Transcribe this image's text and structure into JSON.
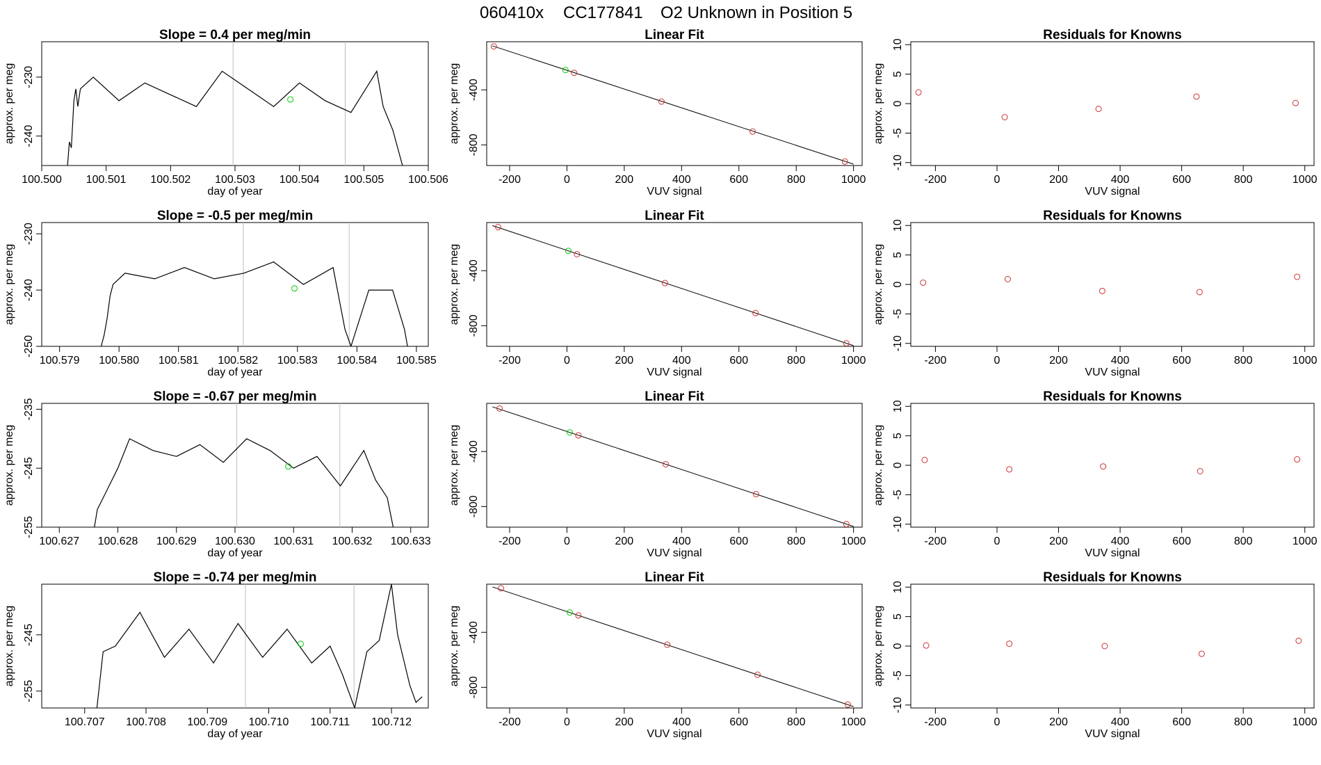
{
  "figure": {
    "title_parts": [
      "060410x",
      "CC177841",
      "O2 Unknown in Position  5"
    ]
  },
  "colors": {
    "line": "#000000",
    "known": "#cd3333",
    "unknown": "#00cd00",
    "vline": "#bebebe",
    "axis": "#000000"
  },
  "chart_data": [
    {
      "type": "line",
      "title": "Slope =  0.4  per meg/min",
      "xlabel": "day of year",
      "ylabel": "approx. per meg",
      "xlim": [
        100.5,
        100.506
      ],
      "ylim": [
        -245,
        -224
      ],
      "xticks": [
        100.5,
        100.501,
        100.502,
        100.503,
        100.504,
        100.505,
        100.506
      ],
      "xtick_labels": [
        "100.500",
        "100.501",
        "100.502",
        "100.503",
        "100.504",
        "100.505",
        "100.506"
      ],
      "yticks": [
        -230,
        -240
      ],
      "ytick_labels": [
        "-230",
        "-240"
      ],
      "vlines": [
        100.50297,
        100.50471
      ],
      "x": [
        100.5004,
        100.50043,
        100.50046,
        100.5005,
        100.50053,
        100.50056,
        100.5006,
        100.5008,
        100.5012,
        100.5016,
        100.502,
        100.5024,
        100.5028,
        100.5032,
        100.5036,
        100.504,
        100.5044,
        100.5048,
        100.5052,
        100.5053,
        100.50545,
        100.5056
      ],
      "y": [
        -245,
        -241,
        -242,
        -234,
        -232,
        -235,
        -232,
        -230,
        -234,
        -231,
        -233,
        -235,
        -229,
        -232,
        -235,
        -231,
        -234,
        -236,
        -229,
        -235,
        -239,
        -245
      ],
      "unknown_point": [
        100.50386,
        -233.8
      ]
    },
    {
      "type": "scatter",
      "title": "Linear Fit",
      "xlabel": "VUV signal",
      "ylabel": "approx. per meg",
      "xlim": [
        -280,
        1030
      ],
      "ylim": [
        -950,
        -50
      ],
      "xticks": [
        -200,
        0,
        200,
        400,
        600,
        800,
        1000
      ],
      "xtick_labels": [
        "-200",
        "0",
        "200",
        "400",
        "600",
        "800",
        "1000"
      ],
      "yticks": [
        -400,
        -800
      ],
      "ytick_labels": [
        "-400",
        "-800"
      ],
      "fit_line": [
        [
          -260,
          -80
        ],
        [
          1000,
          -940
        ]
      ],
      "x": [
        -255,
        25,
        330,
        648,
        970
      ],
      "y": [
        -84,
        -276,
        -485,
        -703,
        -921
      ],
      "unknown_point": [
        -5,
        -256
      ]
    },
    {
      "type": "scatter",
      "title": "Residuals for Knowns",
      "xlabel": "VUV signal",
      "ylabel": "approx. per meg",
      "xlim": [
        -280,
        1030
      ],
      "ylim": [
        -10.5,
        10.5
      ],
      "xticks": [
        -200,
        0,
        200,
        400,
        600,
        800,
        1000
      ],
      "xtick_labels": [
        "-200",
        "0",
        "200",
        "400",
        "600",
        "800",
        "1000"
      ],
      "yticks": [
        10,
        5,
        0,
        -5,
        -10
      ],
      "ytick_labels": [
        "10",
        "5",
        "0",
        "-5",
        "-10"
      ],
      "x": [
        -255,
        25,
        330,
        648,
        970
      ],
      "y": [
        1.9,
        -2.3,
        -0.9,
        1.2,
        0.1
      ]
    },
    {
      "type": "line",
      "title": "Slope =  -0.5  per meg/min",
      "xlabel": "day of year",
      "ylabel": "approx. per meg",
      "xlim": [
        100.5787,
        100.5852
      ],
      "ylim": [
        -250,
        -228
      ],
      "xticks": [
        100.579,
        100.58,
        100.581,
        100.582,
        100.583,
        100.584,
        100.585
      ],
      "xtick_labels": [
        "100.579",
        "100.580",
        "100.581",
        "100.582",
        "100.583",
        "100.584",
        "100.585"
      ],
      "yticks": [
        -230,
        -240,
        -250
      ],
      "ytick_labels": [
        "-230",
        "-240",
        "-250"
      ],
      "vlines": [
        100.58209,
        100.58387
      ],
      "x": [
        100.5797,
        100.57975,
        100.5798,
        100.57985,
        100.5799,
        100.5801,
        100.5806,
        100.5811,
        100.5816,
        100.5821,
        100.5826,
        100.5831,
        100.5836,
        100.5838,
        100.5839,
        100.5842,
        100.5846,
        100.5848,
        100.58485
      ],
      "y": [
        -250,
        -248,
        -245,
        -241,
        -239,
        -237,
        -238,
        -236,
        -238,
        -237,
        -235,
        -239,
        -236,
        -247,
        -250,
        -240,
        -240,
        -247,
        -250
      ],
      "unknown_point": [
        100.58295,
        -239.7
      ]
    },
    {
      "type": "scatter",
      "title": "Linear Fit",
      "xlabel": "VUV signal",
      "ylabel": "approx. per meg",
      "xlim": [
        -280,
        1030
      ],
      "ylim": [
        -950,
        -50
      ],
      "xticks": [
        -200,
        0,
        200,
        400,
        600,
        800,
        1000
      ],
      "xtick_labels": [
        "-200",
        "0",
        "200",
        "400",
        "600",
        "800",
        "1000"
      ],
      "yticks": [
        -400,
        -800
      ],
      "ytick_labels": [
        "-400",
        "-800"
      ],
      "fit_line": [
        [
          -260,
          -72
        ],
        [
          1000,
          -945
        ]
      ],
      "x": [
        -240,
        35,
        342,
        658,
        975
      ],
      "y": [
        -83,
        -280,
        -490,
        -708,
        -928
      ],
      "unknown_point": [
        5,
        -256
      ]
    },
    {
      "type": "scatter",
      "title": "Residuals for Knowns",
      "xlabel": "VUV signal",
      "ylabel": "approx. per meg",
      "xlim": [
        -280,
        1030
      ],
      "ylim": [
        -10.5,
        10.5
      ],
      "xticks": [
        -200,
        0,
        200,
        400,
        600,
        800,
        1000
      ],
      "xtick_labels": [
        "-200",
        "0",
        "200",
        "400",
        "600",
        "800",
        "1000"
      ],
      "yticks": [
        10,
        5,
        0,
        -5,
        -10
      ],
      "ytick_labels": [
        "10",
        "5",
        "0",
        "-5",
        "-10"
      ],
      "x": [
        -240,
        35,
        342,
        658,
        975
      ],
      "y": [
        0.3,
        0.9,
        -1.1,
        -1.3,
        1.3
      ]
    },
    {
      "type": "line",
      "title": "Slope =  -0.67  per meg/min",
      "xlabel": "day of year",
      "ylabel": "approx. per meg",
      "xlim": [
        100.6267,
        100.6333
      ],
      "ylim": [
        -255,
        -234
      ],
      "xticks": [
        100.627,
        100.628,
        100.629,
        100.63,
        100.631,
        100.632,
        100.633
      ],
      "xtick_labels": [
        "100.627",
        "100.628",
        "100.629",
        "100.630",
        "100.631",
        "100.632",
        "100.633"
      ],
      "yticks": [
        -235,
        -245,
        -255
      ],
      "ytick_labels": [
        "-235",
        "-245",
        "-255"
      ],
      "vlines": [
        100.63003,
        100.63179
      ],
      "x": [
        100.6276,
        100.62765,
        100.6278,
        100.628,
        100.6282,
        100.6286,
        100.629,
        100.6294,
        100.6298,
        100.6302,
        100.6306,
        100.631,
        100.6314,
        100.6318,
        100.6322,
        100.6324,
        100.6326,
        100.6327
      ],
      "y": [
        -255,
        -252,
        -249,
        -245,
        -240,
        -242,
        -243,
        -241,
        -244,
        -240,
        -242,
        -245,
        -243,
        -248,
        -242,
        -247,
        -250,
        -255
      ],
      "unknown_point": [
        100.63091,
        -244.7
      ]
    },
    {
      "type": "scatter",
      "title": "Linear Fit",
      "xlabel": "VUV signal",
      "ylabel": "approx. per meg",
      "xlim": [
        -280,
        1030
      ],
      "ylim": [
        -950,
        -50
      ],
      "xticks": [
        -200,
        0,
        200,
        400,
        600,
        800,
        1000
      ],
      "xtick_labels": [
        "-200",
        "0",
        "200",
        "400",
        "600",
        "800",
        "1000"
      ],
      "yticks": [
        -400,
        -800
      ],
      "ytick_labels": [
        "-400",
        "-800"
      ],
      "fit_line": [
        [
          -260,
          -75
        ],
        [
          1000,
          -945
        ]
      ],
      "x": [
        -235,
        40,
        345,
        660,
        975
      ],
      "y": [
        -87,
        -283,
        -493,
        -710,
        -928
      ],
      "unknown_point": [
        10,
        -261
      ]
    },
    {
      "type": "scatter",
      "title": "Residuals for Knowns",
      "xlabel": "VUV signal",
      "ylabel": "approx. per meg",
      "xlim": [
        -280,
        1030
      ],
      "ylim": [
        -10.5,
        10.5
      ],
      "xticks": [
        -200,
        0,
        200,
        400,
        600,
        800,
        1000
      ],
      "xtick_labels": [
        "-200",
        "0",
        "200",
        "400",
        "600",
        "800",
        "1000"
      ],
      "yticks": [
        10,
        5,
        0,
        -5,
        -10
      ],
      "ytick_labels": [
        "10",
        "5",
        "0",
        "-5",
        "-10"
      ],
      "x": [
        -235,
        40,
        345,
        660,
        975
      ],
      "y": [
        0.9,
        -0.7,
        -0.2,
        -1.0,
        1.0
      ]
    },
    {
      "type": "line",
      "title": "Slope =  -0.74  per meg/min",
      "xlabel": "day of year",
      "ylabel": "approx. per meg",
      "xlim": [
        100.7063,
        100.7126
      ],
      "ylim": [
        -258,
        -236
      ],
      "xticks": [
        100.707,
        100.708,
        100.709,
        100.71,
        100.711,
        100.712
      ],
      "xtick_labels": [
        "100.707",
        "100.708",
        "100.709",
        "100.710",
        "100.711",
        "100.712"
      ],
      "yticks": [
        -245,
        -255
      ],
      "ytick_labels": [
        "-245",
        "-255"
      ],
      "vlines": [
        100.70962,
        100.71139
      ],
      "x": [
        100.7072,
        100.7073,
        100.7075,
        100.7079,
        100.7083,
        100.7087,
        100.7091,
        100.7095,
        100.7099,
        100.7103,
        100.7107,
        100.711,
        100.7112,
        100.7114,
        100.7116,
        100.7118,
        100.712,
        100.7121,
        100.7123,
        100.7124,
        100.7125
      ],
      "y": [
        -258,
        -248,
        -247,
        -241,
        -249,
        -244,
        -250,
        -243,
        -249,
        -244,
        -250,
        -247,
        -252,
        -258,
        -248,
        -246,
        -236,
        -245,
        -254,
        -257,
        -256
      ],
      "unknown_point": [
        100.71052,
        -246.6
      ]
    },
    {
      "type": "scatter",
      "title": "Linear Fit",
      "xlabel": "VUV signal",
      "ylabel": "approx. per meg",
      "xlim": [
        -280,
        1030
      ],
      "ylim": [
        -950,
        -50
      ],
      "xticks": [
        -200,
        0,
        200,
        400,
        600,
        800,
        1000
      ],
      "xtick_labels": [
        "-200",
        "0",
        "200",
        "400",
        "600",
        "800",
        "1000"
      ],
      "yticks": [
        -400,
        -800
      ],
      "ytick_labels": [
        "-400",
        "-800"
      ],
      "fit_line": [
        [
          -260,
          -70
        ],
        [
          1000,
          -940
        ]
      ],
      "x": [
        -230,
        40,
        350,
        665,
        980
      ],
      "y": [
        -80,
        -277,
        -490,
        -708,
        -925
      ],
      "unknown_point": [
        10,
        -256
      ]
    },
    {
      "type": "scatter",
      "title": "Residuals for Knowns",
      "xlabel": "VUV signal",
      "ylabel": "approx. per meg",
      "xlim": [
        -280,
        1030
      ],
      "ylim": [
        -10.5,
        10.5
      ],
      "xticks": [
        -200,
        0,
        200,
        400,
        600,
        800,
        1000
      ],
      "xtick_labels": [
        "-200",
        "0",
        "200",
        "400",
        "600",
        "800",
        "1000"
      ],
      "yticks": [
        10,
        5,
        0,
        -5,
        -10
      ],
      "ytick_labels": [
        "10",
        "5",
        "0",
        "-5",
        "-10"
      ],
      "x": [
        -230,
        40,
        350,
        665,
        980
      ],
      "y": [
        0.1,
        0.4,
        0.0,
        -1.3,
        0.9
      ]
    }
  ]
}
